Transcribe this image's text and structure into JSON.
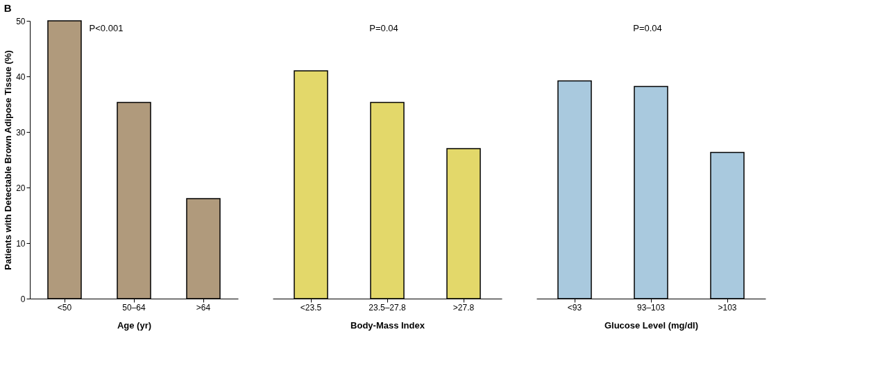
{
  "chart_data": [
    {
      "type": "bar",
      "title": "B",
      "ylabel": "Patients with Detectable Brown Adipose Tissue (%)",
      "xlabel": "Age (yr)",
      "annotations": [
        "P<0.001"
      ],
      "categories": [
        "<50",
        "50–64",
        ">64"
      ],
      "values": [
        50,
        35.3,
        18
      ],
      "color": "#b09a7c",
      "ylim": [
        0,
        50
      ],
      "yticks": [
        0,
        10,
        20,
        30,
        40,
        50
      ],
      "grid": false
    },
    {
      "type": "bar",
      "xlabel": "Body-Mass Index",
      "annotations": [
        "P=0.04"
      ],
      "categories": [
        "<23.5",
        "23.5–27.8",
        ">27.8"
      ],
      "values": [
        41,
        35.3,
        27
      ],
      "color": "#e3d86a",
      "ylim": [
        0,
        50
      ],
      "grid": false,
      "tick_labels": "x"
    },
    {
      "type": "bar",
      "xlabel": "Glucose Level (mg/dl)",
      "annotations": [
        "P=0.04"
      ],
      "categories": [
        "<93",
        "93–103",
        ">103"
      ],
      "values": [
        39.2,
        38.2,
        26.3
      ],
      "color": "#a9c9de",
      "ylim": [
        0,
        50
      ],
      "grid": false,
      "tick_labels": "x"
    }
  ]
}
